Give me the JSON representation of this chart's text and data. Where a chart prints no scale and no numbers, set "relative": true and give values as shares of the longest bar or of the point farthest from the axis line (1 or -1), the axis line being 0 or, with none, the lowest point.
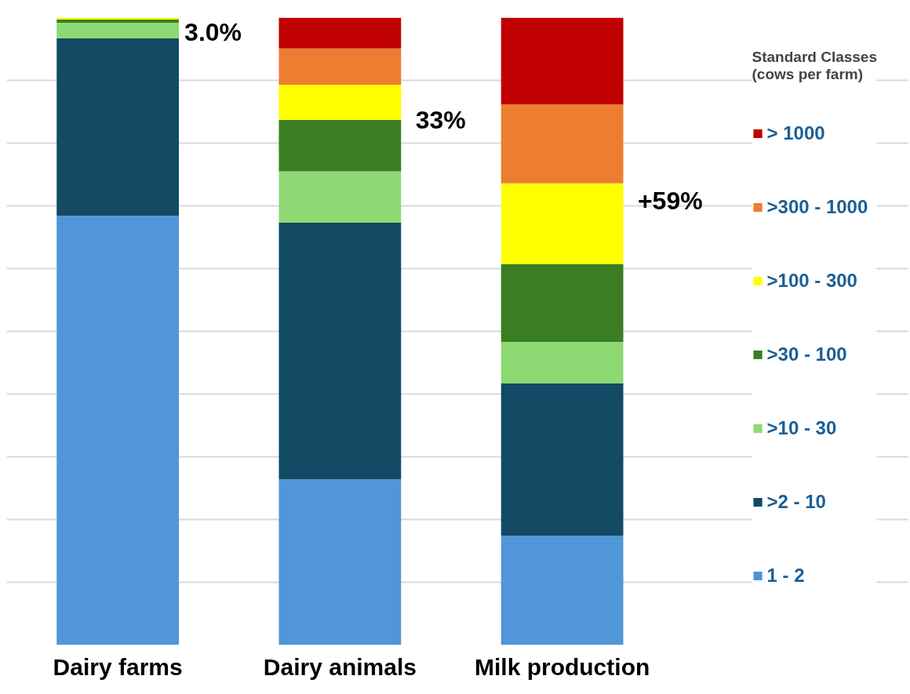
{
  "chart_data": {
    "type": "bar",
    "stacked": true,
    "relative": true,
    "grid": "y",
    "legend": "right",
    "legend_title": "Standard Classes\n(cows per farm)",
    "categories": [
      "Dairy farms",
      "Dairy animals",
      "Milk production"
    ],
    "series": [
      {
        "name": "1 - 2",
        "color": "#5096d8",
        "values": [
          0.684,
          0.264,
          0.174
        ]
      },
      {
        "name": ">2 - 10",
        "color": "#134a64",
        "values": [
          0.283,
          0.409,
          0.243
        ]
      },
      {
        "name": ">10 - 30",
        "color": "#8ed973",
        "values": [
          0.025,
          0.082,
          0.066
        ]
      },
      {
        "name": ">30 - 100",
        "color": "#3a7d22",
        "values": [
          0.005,
          0.082,
          0.124
        ]
      },
      {
        "name": ">100 - 300",
        "color": "#ffff00",
        "values": [
          0.003,
          0.056,
          0.129
        ]
      },
      {
        "name": ">300 - 1000",
        "color": "#ed7d31",
        "values": [
          null,
          0.058,
          0.126
        ]
      },
      {
        "name": "> 1000",
        "color": "#c00000",
        "values": [
          0,
          0.049,
          0.138
        ]
      }
    ],
    "annotations": [
      "3.0%",
      "33%",
      "+59%"
    ]
  }
}
